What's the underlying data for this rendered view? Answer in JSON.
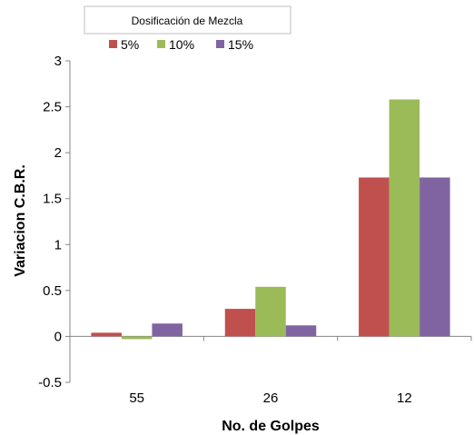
{
  "chart_data": {
    "type": "bar",
    "categories": [
      "55",
      "26",
      "12"
    ],
    "series": [
      {
        "name": "5%",
        "values": [
          0.04,
          0.3,
          1.73
        ],
        "color": "#c0504d"
      },
      {
        "name": "10%",
        "values": [
          -0.03,
          0.54,
          2.58
        ],
        "color": "#9bbb59"
      },
      {
        "name": "15%",
        "values": [
          0.14,
          0.12,
          1.73
        ],
        "color": "#8064a2"
      }
    ],
    "legend_title": "Dosificación de Mezcla",
    "xlabel": "No. de Golpes",
    "ylabel": "Variacion C.B.R.",
    "ylim": [
      -0.5,
      3
    ],
    "yticks": [
      "-0.5",
      "0",
      "0.5",
      "1",
      "1.5",
      "2",
      "2.5",
      "3"
    ],
    "legend_position": "top",
    "grid": false
  }
}
